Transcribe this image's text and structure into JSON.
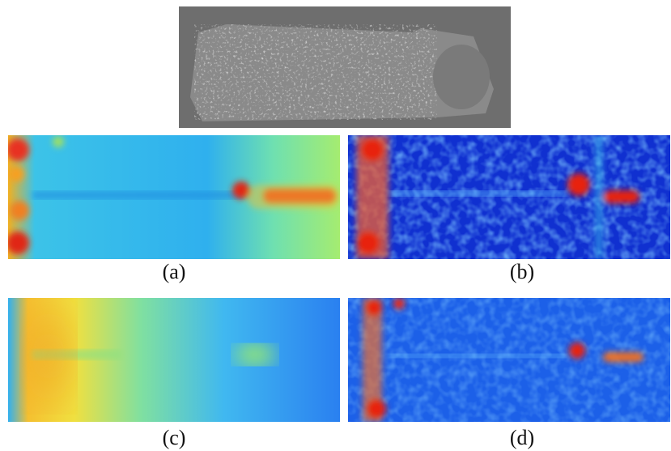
{
  "figure": {
    "panels": [
      {
        "label": "(a)"
      },
      {
        "label": "(b)"
      },
      {
        "label": "(c)"
      },
      {
        "label": "(d)"
      }
    ]
  }
}
